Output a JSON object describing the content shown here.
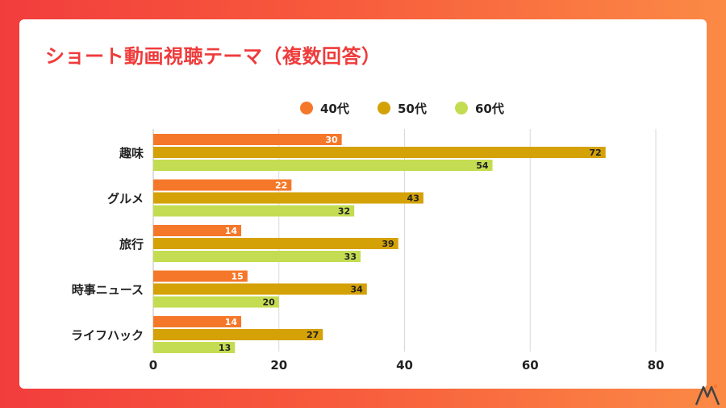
{
  "header": {
    "title": "ショート動画視聴テーマ（複数回答）"
  },
  "chart_data": {
    "type": "bar",
    "orientation": "horizontal",
    "title": "ショート動画視聴テーマ（複数回答）",
    "categories": [
      "趣味",
      "グルメ",
      "旅行",
      "時事ニュース",
      "ライフハック"
    ],
    "series": [
      {
        "name": "40代",
        "color": "#f5782a",
        "values": [
          30,
          22,
          14,
          15,
          14
        ]
      },
      {
        "name": "50代",
        "color": "#d4a106",
        "values": [
          72,
          43,
          39,
          34,
          27
        ]
      },
      {
        "name": "60代",
        "color": "#c4dc52",
        "values": [
          54,
          32,
          33,
          20,
          13
        ]
      }
    ],
    "xlim": [
      0,
      80
    ],
    "xticks": [
      0,
      20,
      40,
      60,
      80
    ],
    "grid": true,
    "legend": "top-center",
    "data_labels": true
  },
  "colors": {
    "brand": "#ef3b3b",
    "grid": "#d9d9d9"
  },
  "logo": {
    "icon": "mi-logo-icon"
  }
}
